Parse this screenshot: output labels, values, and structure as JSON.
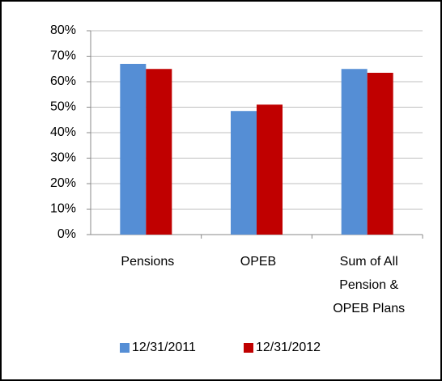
{
  "chart_data": {
    "type": "bar",
    "categories": [
      "Pensions",
      "OPEB",
      "Sum of All Pension & OPEB Plans"
    ],
    "series": [
      {
        "name": "12/31/2011",
        "color": "#558ed5",
        "values": [
          67,
          48.5,
          65
        ]
      },
      {
        "name": "12/31/2012",
        "color": "#c00000",
        "values": [
          65,
          51,
          63.5
        ]
      }
    ],
    "ylim": [
      0,
      80
    ],
    "yticks": [
      {
        "value": 0,
        "label": "0%"
      },
      {
        "value": 10,
        "label": "10%"
      },
      {
        "value": 20,
        "label": "20%"
      },
      {
        "value": 30,
        "label": "30%"
      },
      {
        "value": 40,
        "label": "40%"
      },
      {
        "value": 50,
        "label": "50%"
      },
      {
        "value": 60,
        "label": "60%"
      },
      {
        "value": 70,
        "label": "70%"
      },
      {
        "value": 80,
        "label": "80%"
      }
    ],
    "grid": true,
    "legend": "bottom"
  }
}
